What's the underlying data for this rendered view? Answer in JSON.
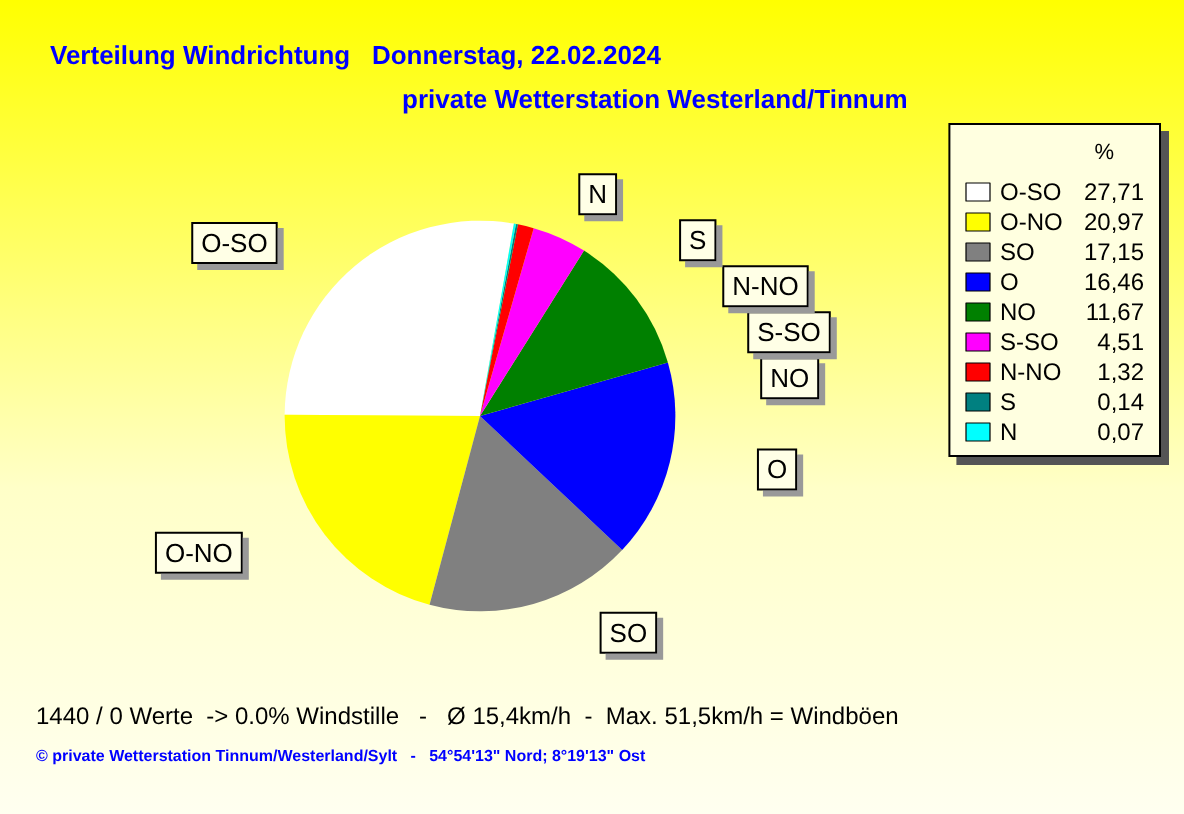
{
  "chart_data": {
    "type": "pie",
    "title": "Verteilung Windrichtung   Donnerstag, 22.02.2024",
    "subtitle": "private Wetterstation Westerland/Tinnum",
    "legend_title": "%",
    "legend": "right",
    "categories": [
      "O-SO",
      "O-NO",
      "SO",
      "O",
      "NO",
      "S-SO",
      "N-NO",
      "S",
      "N"
    ],
    "values": [
      27.71,
      20.97,
      17.15,
      16.46,
      11.67,
      4.51,
      1.32,
      0.14,
      0.07
    ],
    "value_labels": [
      "27,71",
      "20,97",
      "17,15",
      "16,46",
      "11,67",
      "4,51",
      "1,32",
      "0,14",
      "0,07"
    ],
    "colors": [
      "#ffffff",
      "#ffff00",
      "#808080",
      "#0000ff",
      "#008000",
      "#ff00ff",
      "#ff0000",
      "#008080",
      "#00ffff"
    ],
    "annotations": [
      "1440 / 0 Werte  -> 0.0% Windstille   -   Ø 15,4km/h  -  Max. 51,5km/h = Windböen",
      "© private Wetterstation Tinnum/Westerland/Sylt   -   54°54'13\" Nord; 8°19'13\" Ost"
    ]
  }
}
